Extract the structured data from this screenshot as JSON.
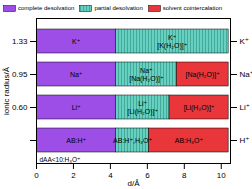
{
  "chart_data": {
    "type": "bar",
    "orientation": "horizontal",
    "stacked": true,
    "categories": [
      "1.33",
      "0.95",
      "0.60",
      null
    ],
    "y2ticks": [
      {
        "value": 0,
        "label": "K⁺"
      },
      {
        "value": 1,
        "label": "Na⁺"
      },
      {
        "value": 2,
        "label": "Li⁺"
      },
      {
        "value": 3,
        "label": "H⁺"
      }
    ],
    "xlabel": "d/Å",
    "ylabel": "ionic radius/Å",
    "xlim": [
      0,
      10.5
    ],
    "xticks": [
      0,
      2,
      4,
      6,
      8,
      10
    ],
    "legend": "top",
    "series": [
      {
        "name": "complete desolvation",
        "color": "#9d4ee6",
        "values": [
          4.3,
          4.3,
          4.3,
          4.3
        ],
        "labels": [
          "K⁺",
          "Na⁺",
          "Li⁺",
          "AB:H⁺"
        ]
      },
      {
        "name": "partial desolvation",
        "color": "#66d1c1",
        "values": [
          6.1,
          3.3,
          2.9,
          1.8
        ],
        "labels": [
          "K⁺\n[K(H₂O)]⁺",
          "Na⁺\n[Na(H₂O)]⁺",
          "Li⁺\n[Li(H₂O)]⁺",
          "AB:H⁺,H₃O⁺"
        ]
      },
      {
        "name": "solvent cointercalation",
        "color": "#e8363a",
        "values": [
          null,
          2.8,
          3.2,
          4.3
        ],
        "labels": [
          null,
          "[Na(H₂O)]⁺",
          "[Li(H₂O)]⁺",
          "AB:H₃O⁺"
        ]
      }
    ],
    "annotations": [
      "dAA<10:H₃O⁺"
    ]
  }
}
